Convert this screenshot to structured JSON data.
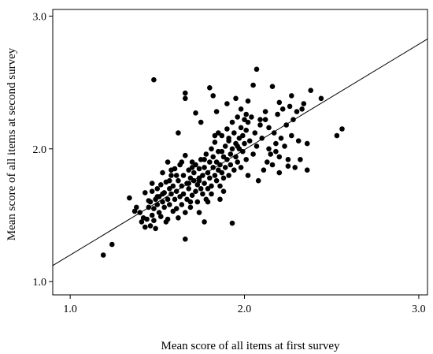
{
  "chart_data": {
    "type": "scatter",
    "title": "",
    "xlabel": "Mean score of all items at first survey",
    "ylabel": "Mean score of all items at second survey",
    "xlim": [
      0.9,
      3.05
    ],
    "ylim": [
      0.9,
      3.05
    ],
    "xticks": [
      1.0,
      2.0,
      3.0
    ],
    "yticks": [
      1.0,
      2.0,
      3.0
    ],
    "xtick_labels": [
      "1.0",
      "2.0",
      "3.0"
    ],
    "ytick_labels": [
      "1.0",
      "2.0",
      "3.0"
    ],
    "grid": false,
    "legend": "none",
    "fit_line": {
      "slope": 0.794,
      "intercept": 0.406
    },
    "point_color": "#000000",
    "series": [
      {
        "points": [
          [
            1.19,
            1.2
          ],
          [
            1.24,
            1.28
          ],
          [
            1.34,
            1.63
          ],
          [
            1.37,
            1.53
          ],
          [
            1.38,
            1.56
          ],
          [
            1.4,
            1.52
          ],
          [
            1.41,
            1.45
          ],
          [
            1.42,
            1.48
          ],
          [
            1.43,
            1.41
          ],
          [
            1.44,
            1.47
          ],
          [
            1.45,
            1.56
          ],
          [
            1.45,
            1.61
          ],
          [
            1.46,
            1.42
          ],
          [
            1.47,
            1.5
          ],
          [
            1.47,
            1.68
          ],
          [
            1.48,
            1.55
          ],
          [
            1.48,
            1.46
          ],
          [
            1.49,
            1.62
          ],
          [
            1.49,
            1.4
          ],
          [
            1.5,
            1.58
          ],
          [
            1.5,
            1.7
          ],
          [
            1.51,
            1.52
          ],
          [
            1.51,
            1.64
          ],
          [
            1.52,
            1.73
          ],
          [
            1.52,
            1.49
          ],
          [
            1.53,
            1.6
          ],
          [
            1.53,
            1.82
          ],
          [
            1.54,
            1.67
          ],
          [
            1.54,
            1.56
          ],
          [
            1.55,
            1.75
          ],
          [
            1.55,
            1.45
          ],
          [
            1.56,
            1.62
          ],
          [
            1.56,
            1.9
          ],
          [
            1.57,
            1.7
          ],
          [
            1.57,
            1.58
          ],
          [
            1.58,
            1.66
          ],
          [
            1.58,
            1.8
          ],
          [
            1.59,
            1.53
          ],
          [
            1.59,
            1.72
          ],
          [
            1.6,
            1.62
          ],
          [
            1.6,
            1.85
          ],
          [
            1.61,
            1.68
          ],
          [
            1.61,
            1.55
          ],
          [
            1.62,
            1.76
          ],
          [
            1.62,
            1.48
          ],
          [
            1.63,
            1.64
          ],
          [
            1.63,
            1.88
          ],
          [
            1.64,
            1.72
          ],
          [
            1.64,
            1.58
          ],
          [
            1.65,
            1.8
          ],
          [
            1.65,
            1.66
          ],
          [
            1.66,
            1.95
          ],
          [
            1.66,
            1.52
          ],
          [
            1.67,
            1.74
          ],
          [
            1.67,
            1.62
          ],
          [
            1.68,
            1.84
          ],
          [
            1.68,
            1.7
          ],
          [
            1.69,
            1.56
          ],
          [
            1.69,
            1.78
          ],
          [
            1.7,
            1.9
          ],
          [
            1.7,
            1.65
          ],
          [
            1.71,
            1.76
          ],
          [
            1.71,
            1.82
          ],
          [
            1.72,
            1.68
          ],
          [
            1.72,
            1.88
          ],
          [
            1.73,
            1.73
          ],
          [
            1.73,
            1.6
          ],
          [
            1.74,
            1.85
          ],
          [
            1.74,
            1.78
          ],
          [
            1.75,
            1.7
          ],
          [
            1.75,
            1.92
          ],
          [
            1.76,
            1.8
          ],
          [
            1.76,
            1.66
          ],
          [
            1.77,
            1.86
          ],
          [
            1.77,
            1.74
          ],
          [
            1.78,
            1.96
          ],
          [
            1.78,
            1.62
          ],
          [
            1.79,
            1.82
          ],
          [
            1.79,
            1.7
          ],
          [
            1.8,
            1.9
          ],
          [
            1.8,
            1.78
          ],
          [
            1.81,
            2.0
          ],
          [
            1.81,
            1.72
          ],
          [
            1.82,
            1.86
          ],
          [
            1.82,
            1.94
          ],
          [
            1.83,
            1.8
          ],
          [
            1.83,
            2.05
          ],
          [
            1.84,
            1.76
          ],
          [
            1.84,
            1.9
          ],
          [
            1.85,
            1.84
          ],
          [
            1.85,
            1.98
          ],
          [
            1.86,
            1.72
          ],
          [
            1.86,
            1.88
          ],
          [
            1.87,
            2.1
          ],
          [
            1.87,
            1.82
          ],
          [
            1.88,
            1.94
          ],
          [
            1.88,
            1.78
          ],
          [
            1.89,
            2.02
          ],
          [
            1.89,
            1.86
          ],
          [
            1.9,
            2.15
          ],
          [
            1.9,
            1.92
          ],
          [
            1.91,
            1.8
          ],
          [
            1.91,
            2.06
          ],
          [
            1.92,
            1.96
          ],
          [
            1.92,
            1.88
          ],
          [
            1.93,
            2.2
          ],
          [
            1.93,
            2.0
          ],
          [
            1.94,
            1.84
          ],
          [
            1.94,
            2.12
          ],
          [
            1.95,
            1.94
          ],
          [
            1.95,
            2.04
          ],
          [
            1.96,
            2.24
          ],
          [
            1.96,
            1.9
          ],
          [
            1.97,
            2.08
          ],
          [
            1.97,
            2.0
          ],
          [
            1.98,
            2.16
          ],
          [
            1.98,
            1.86
          ],
          [
            1.99,
            2.1
          ],
          [
            1.99,
            1.98
          ],
          [
            2.0,
            2.22
          ],
          [
            2.0,
            2.04
          ],
          [
            2.01,
            1.92
          ],
          [
            2.01,
            2.14
          ],
          [
            2.02,
            2.2
          ],
          [
            2.02,
            1.8
          ],
          [
            2.03,
            2.06
          ],
          [
            2.04,
            2.24
          ],
          [
            2.05,
            1.96
          ],
          [
            2.06,
            2.12
          ],
          [
            2.07,
            2.02
          ],
          [
            2.08,
            1.76
          ],
          [
            2.09,
            2.18
          ],
          [
            2.1,
            2.08
          ],
          [
            2.11,
            1.84
          ],
          [
            2.12,
            2.22
          ],
          [
            2.13,
            1.9
          ],
          [
            2.14,
            2.0
          ],
          [
            2.15,
            1.96
          ],
          [
            2.16,
            1.88
          ],
          [
            2.17,
            2.12
          ],
          [
            2.18,
            2.04
          ],
          [
            2.19,
            2.26
          ],
          [
            2.2,
            1.94
          ],
          [
            2.21,
            2.08
          ],
          [
            2.22,
            2.3
          ],
          [
            2.23,
            2.02
          ],
          [
            2.24,
            2.18
          ],
          [
            2.25,
            1.92
          ],
          [
            2.26,
            2.32
          ],
          [
            2.27,
            2.1
          ],
          [
            2.28,
            2.22
          ],
          [
            2.29,
            1.86
          ],
          [
            2.3,
            2.28
          ],
          [
            2.31,
            2.06
          ],
          [
            2.32,
            1.92
          ],
          [
            2.33,
            2.3
          ],
          [
            2.34,
            2.34
          ],
          [
            2.36,
            2.04
          ],
          [
            2.38,
            2.44
          ],
          [
            2.44,
            2.38
          ],
          [
            2.53,
            2.1
          ],
          [
            2.56,
            2.15
          ],
          [
            1.48,
            2.52
          ],
          [
            1.66,
            2.42
          ],
          [
            1.66,
            2.38
          ],
          [
            1.8,
            2.46
          ],
          [
            1.82,
            2.4
          ],
          [
            1.9,
            2.34
          ],
          [
            2.05,
            2.48
          ],
          [
            2.07,
            2.6
          ],
          [
            2.16,
            2.47
          ],
          [
            2.2,
            2.35
          ],
          [
            2.27,
            2.4
          ],
          [
            1.95,
            2.38
          ],
          [
            1.75,
            2.2
          ],
          [
            1.62,
            2.12
          ],
          [
            1.72,
            2.27
          ],
          [
            1.84,
            2.28
          ],
          [
            1.66,
            1.32
          ],
          [
            1.77,
            1.45
          ],
          [
            1.93,
            1.44
          ],
          [
            1.56,
            1.47
          ],
          [
            1.43,
            1.67
          ],
          [
            1.47,
            1.74
          ],
          [
            2.2,
            1.82
          ],
          [
            2.25,
            1.87
          ],
          [
            2.36,
            1.84
          ],
          [
            1.83,
            2.1
          ],
          [
            1.7,
            1.86
          ],
          [
            1.58,
            1.84
          ],
          [
            1.74,
            1.52
          ],
          [
            1.69,
            1.6
          ],
          [
            1.86,
            1.62
          ],
          [
            1.81,
            1.66
          ],
          [
            1.53,
            1.66
          ],
          [
            1.64,
            1.9
          ],
          [
            1.77,
            1.92
          ],
          [
            2.12,
            2.28
          ],
          [
            2.14,
            2.16
          ],
          [
            2.09,
            2.22
          ],
          [
            1.98,
            2.3
          ],
          [
            2.18,
            1.98
          ],
          [
            2.02,
            2.36
          ],
          [
            1.88,
            1.68
          ],
          [
            1.79,
            1.6
          ],
          [
            2.01,
            2.26
          ],
          [
            1.96,
            2.02
          ],
          [
            1.91,
            2.08
          ],
          [
            1.87,
            1.98
          ],
          [
            1.85,
            2.12
          ],
          [
            1.74,
            1.76
          ],
          [
            1.68,
            1.74
          ],
          [
            1.61,
            1.8
          ],
          [
            1.57,
            1.76
          ],
          [
            1.5,
            1.64
          ],
          [
            1.46,
            1.6
          ]
        ]
      }
    ]
  }
}
